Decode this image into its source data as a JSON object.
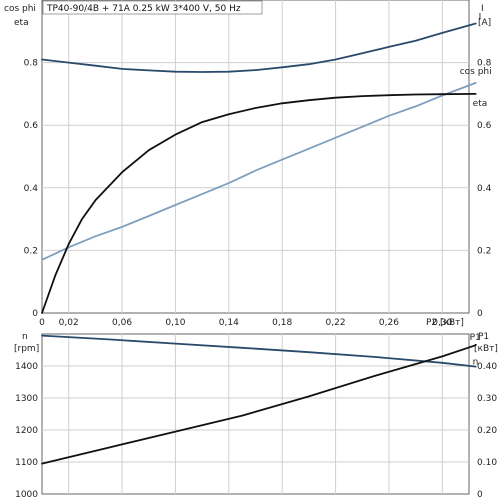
{
  "chart_data": [
    {
      "type": "line",
      "title": "TP40-90/4B + 71A   0.25 kW   3*400 V, 50 Hz",
      "left_axis_labels": [
        "cos phi",
        "eta"
      ],
      "right_axis_labels": [
        "I",
        "[A]"
      ],
      "xlabel": "P2 [кВт]",
      "xlim": [
        0,
        0.32
      ],
      "ylim_left": [
        0,
        1.0
      ],
      "ylim_right": [
        0,
        1.0
      ],
      "x_ticks": [
        "0",
        "0,02",
        "0,06",
        "0,10",
        "0,14",
        "0,18",
        "0,22",
        "0,26",
        "0,30"
      ],
      "x_tick_values": [
        0,
        0.02,
        0.06,
        0.1,
        0.14,
        0.18,
        0.22,
        0.26,
        0.3
      ],
      "y_ticks_left": [
        "0",
        "0.2",
        "0.4",
        "0.6",
        "0.8"
      ],
      "y_ticks_right": [
        "0",
        "0.2",
        "0.4",
        "0.6",
        "0.8"
      ],
      "y_tick_values": [
        0,
        0.2,
        0.4,
        0.6,
        0.8
      ],
      "grid": true,
      "series": [
        {
          "name": "I",
          "axis": "right",
          "color": "#2a4a6b",
          "x": [
            0,
            0.02,
            0.04,
            0.06,
            0.08,
            0.1,
            0.12,
            0.14,
            0.16,
            0.18,
            0.2,
            0.22,
            0.24,
            0.26,
            0.28,
            0.3,
            0.325
          ],
          "y": [
            0.81,
            0.8,
            0.79,
            0.78,
            0.775,
            0.771,
            0.77,
            0.771,
            0.776,
            0.785,
            0.795,
            0.81,
            0.83,
            0.85,
            0.87,
            0.895,
            0.925
          ]
        },
        {
          "name": "cos phi",
          "axis": "left",
          "color": "#7f9fbf",
          "x": [
            0,
            0.02,
            0.04,
            0.06,
            0.08,
            0.1,
            0.12,
            0.14,
            0.16,
            0.18,
            0.2,
            0.22,
            0.24,
            0.26,
            0.28,
            0.3,
            0.325
          ],
          "y": [
            0.17,
            0.21,
            0.245,
            0.275,
            0.31,
            0.345,
            0.38,
            0.415,
            0.455,
            0.49,
            0.525,
            0.56,
            0.595,
            0.63,
            0.66,
            0.695,
            0.735
          ]
        },
        {
          "name": "eta",
          "axis": "left",
          "color": "#111111",
          "x": [
            0,
            0.01,
            0.02,
            0.03,
            0.04,
            0.06,
            0.08,
            0.1,
            0.12,
            0.14,
            0.16,
            0.18,
            0.2,
            0.22,
            0.24,
            0.26,
            0.28,
            0.3,
            0.325
          ],
          "y": [
            0,
            0.12,
            0.22,
            0.3,
            0.36,
            0.45,
            0.52,
            0.57,
            0.61,
            0.635,
            0.655,
            0.67,
            0.68,
            0.688,
            0.693,
            0.696,
            0.698,
            0.699,
            0.7
          ]
        }
      ]
    },
    {
      "type": "line",
      "left_axis_labels": [
        "n",
        "[rpm]"
      ],
      "right_axis_labels": [
        "P1",
        "[кВт]"
      ],
      "xlim": [
        0,
        0.32
      ],
      "ylim_left": [
        1000,
        1500
      ],
      "ylim_right": [
        0,
        0.5
      ],
      "y_ticks_left": [
        "1000",
        "1100",
        "1200",
        "1300",
        "1400"
      ],
      "y_tick_values_left": [
        1000,
        1100,
        1200,
        1300,
        1400
      ],
      "y_ticks_right": [
        "0",
        "0.10",
        "0.20",
        "0.30",
        "0.40"
      ],
      "y_tick_values_right": [
        0,
        0.1,
        0.2,
        0.3,
        0.4
      ],
      "grid": true,
      "series": [
        {
          "name": "n",
          "axis": "left",
          "color": "#2a4a6b",
          "x": [
            0,
            0.05,
            0.1,
            0.15,
            0.2,
            0.25,
            0.3,
            0.325
          ],
          "y": [
            1495,
            1483,
            1470,
            1457,
            1443,
            1428,
            1410,
            1398
          ]
        },
        {
          "name": "P1",
          "axis": "right",
          "color": "#111111",
          "x": [
            0,
            0.05,
            0.1,
            0.15,
            0.2,
            0.25,
            0.3,
            0.325
          ],
          "y": [
            0.095,
            0.145,
            0.195,
            0.245,
            0.305,
            0.37,
            0.43,
            0.465
          ]
        }
      ]
    }
  ]
}
